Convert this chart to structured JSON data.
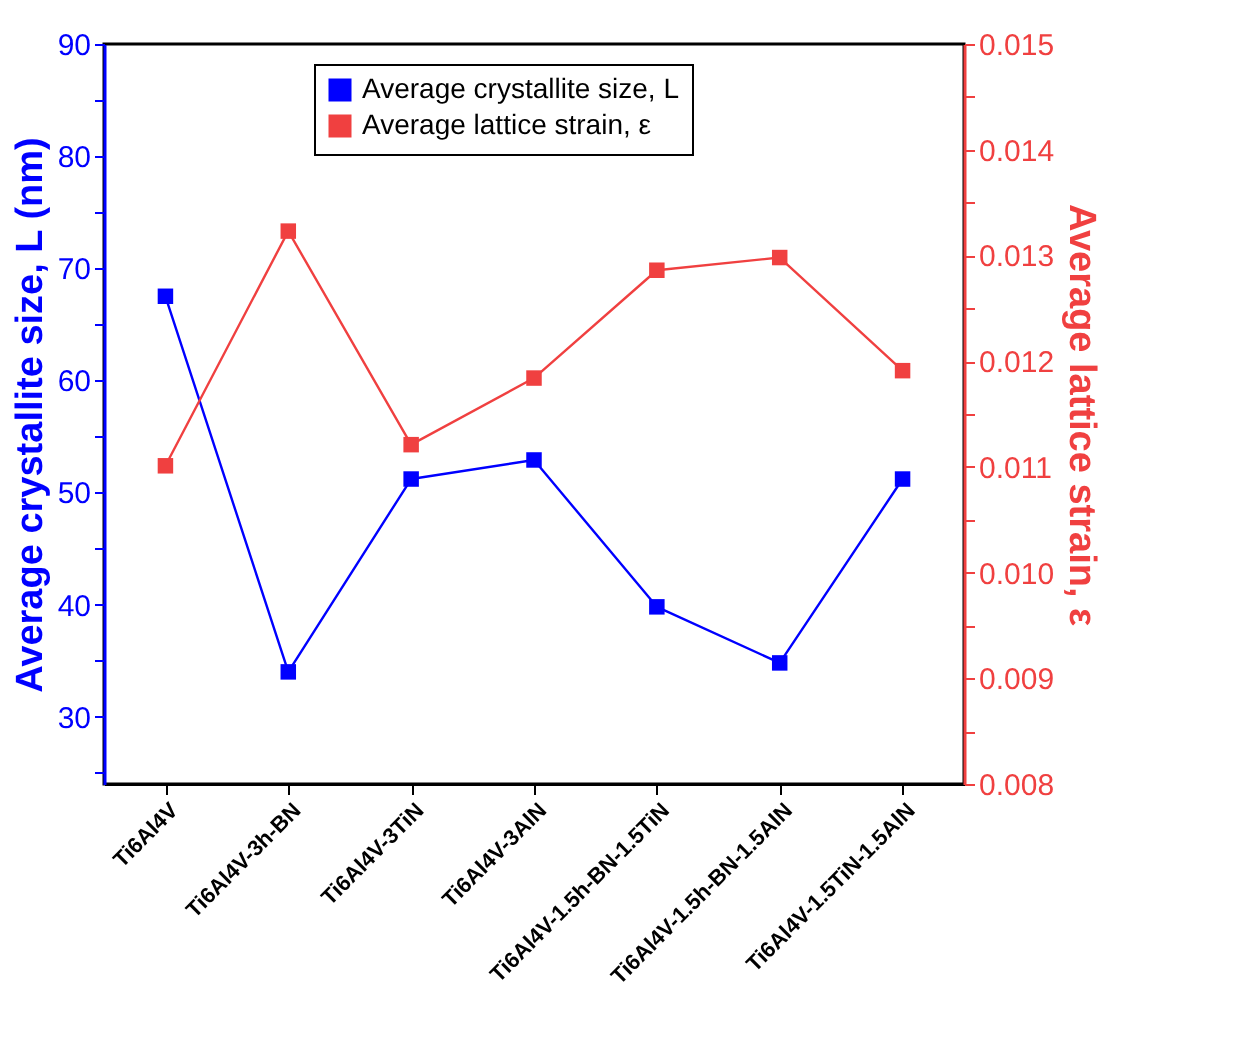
{
  "chart_data": {
    "type": "line",
    "categories": [
      "Ti6Al4V",
      "Ti6Al4V-3h-BN",
      "Ti6Al4V-3TiN",
      "Ti6Al4V-3AlN",
      "Ti6Al4V-1.5h-BN-1.5TiN",
      "Ti6Al4V-1.5h-BN-1.5AlN",
      "Ti6Al4V-1.5TiN-1.5AlN"
    ],
    "ylabel": "Average crystallite size, L (nm)",
    "y2label": "Average lattice strain, ε",
    "ylim": [
      24,
      90
    ],
    "yticks": [
      {
        "value": 25,
        "label": null
      },
      30,
      {
        "value": 35,
        "label": null
      },
      40,
      {
        "value": 45,
        "label": null
      },
      50,
      {
        "value": 55,
        "label": null
      },
      60,
      {
        "value": 65,
        "label": null
      },
      70,
      {
        "value": 75,
        "label": null
      },
      80,
      {
        "value": 85,
        "label": null
      },
      90
    ],
    "y2lim": [
      0.008,
      0.015
    ],
    "y2ticks": [
      0.008,
      {
        "value": 0.0085,
        "label": null
      },
      0.009,
      {
        "value": 0.0095,
        "label": null
      },
      {
        "value": 0.01,
        "label": "0.010"
      },
      {
        "value": 0.0105,
        "label": null
      },
      0.011,
      {
        "value": 0.0115,
        "label": null
      },
      0.012,
      {
        "value": 0.0125,
        "label": null
      },
      0.013,
      {
        "value": 0.0135,
        "label": null
      },
      0.014,
      {
        "value": 0.0145,
        "label": null
      },
      0.015
    ],
    "series": [
      {
        "name": "Average crystallite size, L",
        "color": "#0000ff",
        "values": [
          67.5,
          34.0,
          51.2,
          52.9,
          39.8,
          34.8,
          51.2
        ]
      },
      {
        "name": "Average lattice strain, ε",
        "color": "#f04040",
        "axis": "y2",
        "values": [
          0.01101,
          0.01323,
          0.01121,
          0.01184,
          0.01286,
          0.01298,
          0.01191
        ]
      }
    ],
    "marker": "square",
    "line_style": "solid",
    "legend": "top",
    "grid": false
  }
}
